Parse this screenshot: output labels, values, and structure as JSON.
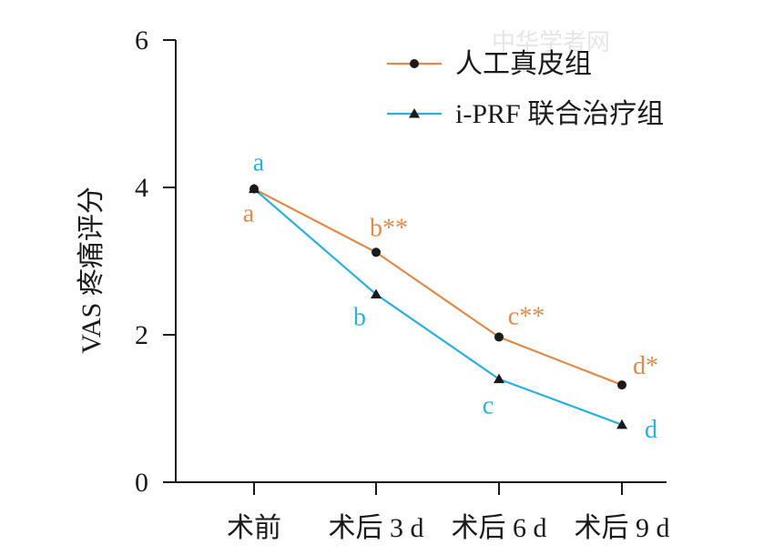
{
  "chart_data": {
    "type": "line",
    "categories": [
      "术前",
      "术后 3 d",
      "术后 6 d",
      "术后 9 d"
    ],
    "ylabel": "VAS 疼痛评分",
    "xlabel": "",
    "ylim": [
      0,
      6
    ],
    "yticks": [
      "0",
      "2",
      "4",
      "6"
    ],
    "grid": false,
    "legend_position": "top-right",
    "series": [
      {
        "name": "人工真皮组",
        "color": "#e08a4a",
        "marker": "circle",
        "values": [
          3.98,
          3.12,
          1.97,
          1.32
        ],
        "labels": [
          "a",
          "b**",
          "c**",
          "d*"
        ]
      },
      {
        "name": "i-PRF 联合治疗组",
        "color": "#2ab0dd",
        "marker": "triangle",
        "values": [
          3.98,
          2.55,
          1.4,
          0.78
        ],
        "labels": [
          "a",
          "b",
          "c",
          "d"
        ]
      }
    ],
    "watermark": "中华学者网"
  }
}
